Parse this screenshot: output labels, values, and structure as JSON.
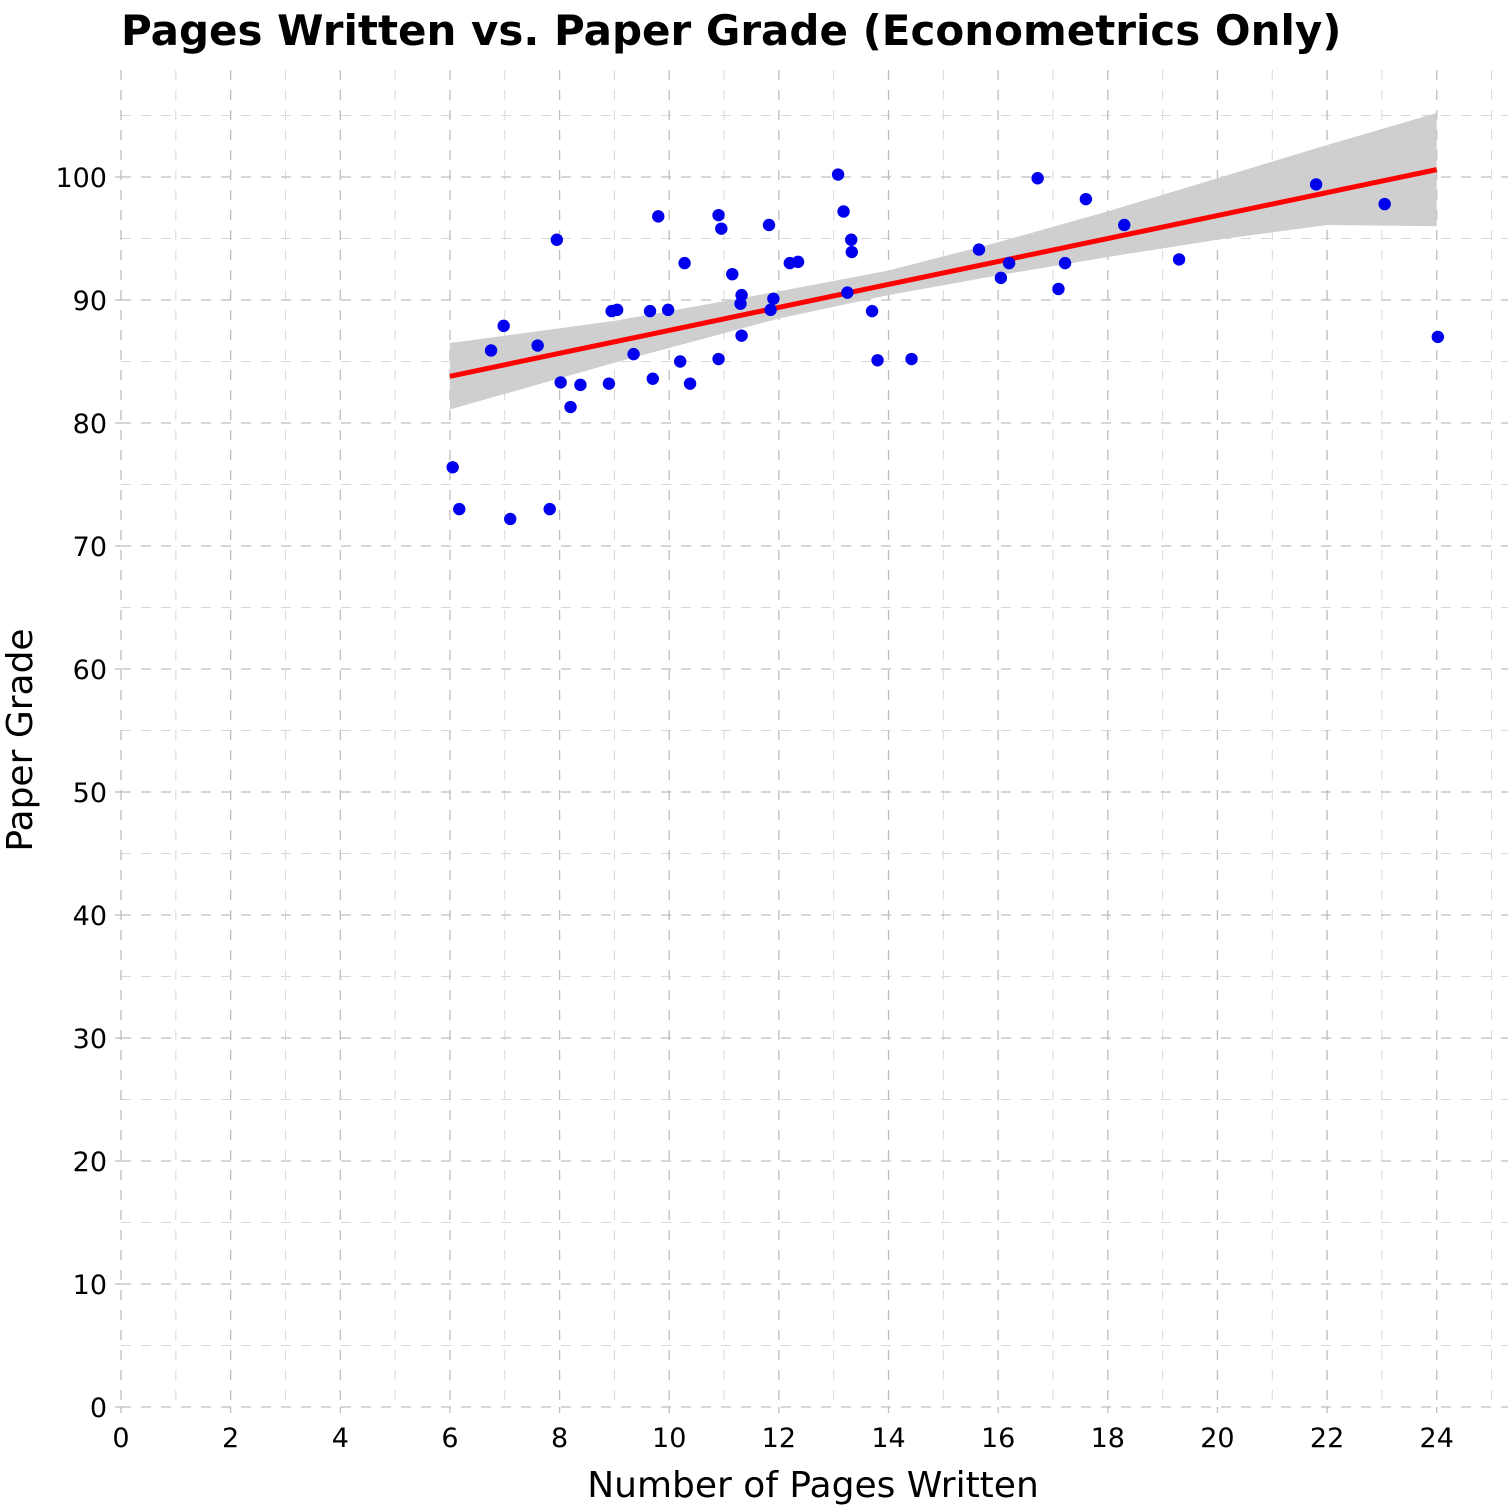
{
  "chart_data": {
    "type": "scatter",
    "title": "Pages Written vs. Paper Grade (Econometrics Only)",
    "xlabel": "Number of Pages Written",
    "ylabel": "Paper Grade",
    "xlim": [
      0,
      25.3
    ],
    "ylim": [
      0,
      108.7
    ],
    "x_ticks": [
      0,
      2,
      4,
      6,
      8,
      10,
      12,
      14,
      16,
      18,
      20,
      22,
      24
    ],
    "y_ticks": [
      0,
      10,
      20,
      30,
      40,
      50,
      60,
      70,
      80,
      90,
      100
    ],
    "grid": true,
    "point_color": "#0000ee",
    "fit_color": "#ff0000",
    "band_color": "#cccccc",
    "points": [
      {
        "x": 6.05,
        "y": 76.4
      },
      {
        "x": 6.17,
        "y": 73.0
      },
      {
        "x": 6.75,
        "y": 85.9
      },
      {
        "x": 6.98,
        "y": 87.9
      },
      {
        "x": 7.1,
        "y": 72.2
      },
      {
        "x": 7.6,
        "y": 86.3
      },
      {
        "x": 7.82,
        "y": 73.0
      },
      {
        "x": 7.95,
        "y": 94.9
      },
      {
        "x": 8.02,
        "y": 83.3
      },
      {
        "x": 8.2,
        "y": 81.3
      },
      {
        "x": 8.38,
        "y": 83.1
      },
      {
        "x": 8.9,
        "y": 83.2
      },
      {
        "x": 8.95,
        "y": 89.1
      },
      {
        "x": 9.05,
        "y": 89.2
      },
      {
        "x": 9.35,
        "y": 85.6
      },
      {
        "x": 9.65,
        "y": 89.1
      },
      {
        "x": 9.7,
        "y": 83.6
      },
      {
        "x": 9.8,
        "y": 96.8
      },
      {
        "x": 9.98,
        "y": 89.2
      },
      {
        "x": 10.2,
        "y": 85.0
      },
      {
        "x": 10.28,
        "y": 93.0
      },
      {
        "x": 10.38,
        "y": 83.2
      },
      {
        "x": 10.9,
        "y": 85.2
      },
      {
        "x": 10.9,
        "y": 96.9
      },
      {
        "x": 10.95,
        "y": 95.8
      },
      {
        "x": 11.15,
        "y": 92.1
      },
      {
        "x": 11.3,
        "y": 89.7
      },
      {
        "x": 11.32,
        "y": 87.1
      },
      {
        "x": 11.32,
        "y": 90.4
      },
      {
        "x": 11.82,
        "y": 96.1
      },
      {
        "x": 11.85,
        "y": 89.2
      },
      {
        "x": 11.9,
        "y": 90.1
      },
      {
        "x": 12.2,
        "y": 93.0
      },
      {
        "x": 12.35,
        "y": 93.1
      },
      {
        "x": 13.08,
        "y": 100.2
      },
      {
        "x": 13.18,
        "y": 97.2
      },
      {
        "x": 13.25,
        "y": 90.6
      },
      {
        "x": 13.32,
        "y": 94.9
      },
      {
        "x": 13.33,
        "y": 93.9
      },
      {
        "x": 13.7,
        "y": 89.1
      },
      {
        "x": 13.8,
        "y": 85.1
      },
      {
        "x": 14.42,
        "y": 85.2
      },
      {
        "x": 15.65,
        "y": 94.1
      },
      {
        "x": 16.05,
        "y": 91.8
      },
      {
        "x": 16.2,
        "y": 93.0
      },
      {
        "x": 16.72,
        "y": 99.9
      },
      {
        "x": 17.1,
        "y": 90.9
      },
      {
        "x": 17.22,
        "y": 93.0
      },
      {
        "x": 17.6,
        "y": 98.2
      },
      {
        "x": 18.3,
        "y": 96.1
      },
      {
        "x": 19.3,
        "y": 93.3
      },
      {
        "x": 21.8,
        "y": 99.4
      },
      {
        "x": 23.05,
        "y": 97.8
      },
      {
        "x": 24.02,
        "y": 87.0
      }
    ],
    "fit_line": {
      "x": [
        6.0,
        24.0
      ],
      "y": [
        83.8,
        100.6
      ]
    },
    "confidence_band": {
      "x": [
        6.0,
        9.0,
        12.0,
        14.0,
        16.0,
        18.0,
        20.0,
        22.0,
        24.0
      ],
      "upper": [
        86.5,
        88.3,
        90.7,
        92.4,
        94.7,
        97.2,
        99.9,
        102.6,
        105.2
      ],
      "lower": [
        81.1,
        84.9,
        88.5,
        90.4,
        92.0,
        93.5,
        94.9,
        96.1,
        96.0
      ]
    }
  }
}
